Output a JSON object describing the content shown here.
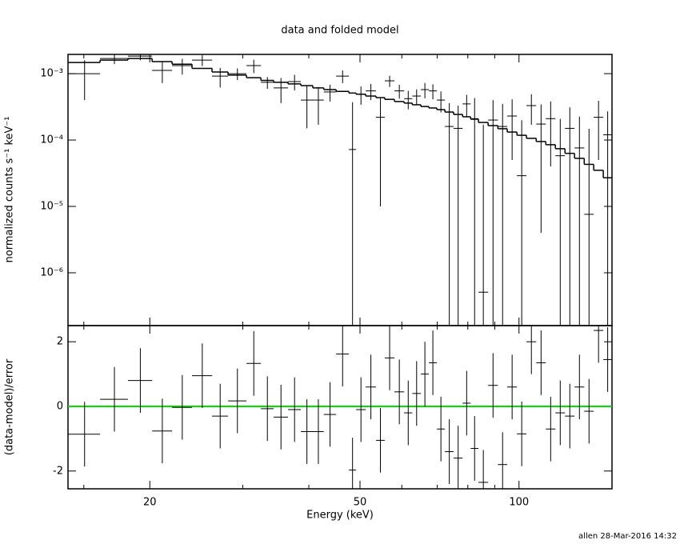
{
  "title": "data and folded model",
  "footer": "allen 28-Mar-2016 14:32",
  "chart_data": [
    {
      "type": "errorbar",
      "ylabel": "normalized counts s⁻¹ keV⁻¹",
      "xlog": true,
      "ylog": true,
      "xlim": [
        14,
        150
      ],
      "ylim": [
        1.6e-07,
        0.00195
      ],
      "xticks": [
        20,
        50,
        100
      ],
      "xticks_minor": [
        15,
        30,
        40,
        60,
        70,
        80,
        90
      ],
      "show_xtick_labels": false,
      "yticks": [
        {
          "value": 1e-06,
          "label": "10⁻⁶"
        },
        {
          "value": 1e-05,
          "label": "10⁻⁵"
        },
        {
          "value": 0.0001,
          "label": "10⁻⁴"
        },
        {
          "value": 0.001,
          "label": "10⁻³"
        }
      ],
      "x": [
        15.05,
        17.14,
        19.19,
        21.12,
        23.04,
        25.14,
        27.18,
        29.3,
        31.47,
        33.39,
        35.43,
        37.59,
        39.67,
        41.7,
        43.88,
        46.35,
        48.4,
        50.21,
        52.43,
        54.65,
        56.9,
        59.35,
        61.7,
        64.0,
        66.35,
        68.7,
        71.15,
        73.8,
        76.7,
        79.6,
        82.4,
        85.6,
        89.3,
        93.1,
        97.05,
        101.2,
        105.55,
        110.1,
        114.8,
        119.7,
        124.8,
        130.15,
        135.7,
        141.45,
        147.2
      ],
      "xerr": [
        1.05,
        1.04,
        1.01,
        0.92,
        1.0,
        1.1,
        0.95,
        1.17,
        0.99,
        0.93,
        1.11,
        1.05,
        1.03,
        1.0,
        1.18,
        1.29,
        0.76,
        1.05,
        1.17,
        1.05,
        1.2,
        1.25,
        1.1,
        1.2,
        1.15,
        1.2,
        1.25,
        1.4,
        1.5,
        1.4,
        1.4,
        1.8,
        1.9,
        1.9,
        2.05,
        2.1,
        2.25,
        2.3,
        2.4,
        2.5,
        2.6,
        2.75,
        2.8,
        2.95,
        2.8
      ],
      "data": {
        "color": "#000000",
        "values": [
          0.001,
          0.00169,
          0.00184,
          0.00112,
          0.00132,
          0.0016,
          0.00092,
          0.001,
          0.00132,
          0.00074,
          0.00061,
          0.00076,
          0.0004,
          0.0004,
          0.00053,
          0.00092,
          7.2e-05,
          0.00049,
          0.00055,
          0.00022,
          0.00078,
          0.00055,
          0.00042,
          0.00046,
          0.000575,
          0.00055,
          0.0004,
          0.00016,
          0.00015,
          0.00035,
          0.00021,
          5.1e-07,
          0.0002,
          0.00016,
          0.00023,
          2.9e-05,
          0.00033,
          0.000174,
          0.00021,
          5.8e-05,
          0.00015,
          7.6e-05,
          7.6e-06,
          0.00022,
          0.00012
        ],
        "errors": [
          0.0006,
          0.0003,
          0.00025,
          0.0004,
          0.00035,
          0.0003,
          0.0003,
          0.0002,
          0.0003,
          0.00015,
          0.00025,
          0.0002,
          0.00025,
          0.00023,
          0.00015,
          0.0002,
          0.0003,
          0.00015,
          0.00015,
          0.00021,
          0.00015,
          0.00013,
          0.00013,
          0.00012,
          0.00015,
          0.00014,
          0.00014,
          0.0002,
          0.00018,
          0.00013,
          0.00022,
          0.00017,
          0.0002,
          0.00019,
          0.00018,
          0.00017,
          0.00016,
          0.00017,
          0.00017,
          0.00015,
          0.00016,
          0.00015,
          0.00014,
          0.00017,
          0.00015
        ]
      },
      "model": {
        "color": "#000000",
        "values": [
          0.00147,
          0.0016,
          0.00169,
          0.00152,
          0.00139,
          0.0012,
          0.00106,
          0.00095,
          0.00087,
          0.00079,
          0.00074,
          0.0007,
          0.00066,
          0.00061,
          0.000575,
          0.00054,
          0.00051,
          0.00049,
          0.00046,
          0.000435,
          0.00041,
          0.00038,
          0.00036,
          0.00034,
          0.00032,
          0.000304,
          0.000287,
          0.000264,
          0.000243,
          0.000224,
          0.000206,
          0.000184,
          0.000165,
          0.000148,
          0.000132,
          0.000118,
          0.000106,
          9.5e-05,
          8.5e-05,
          7.4e-05,
          6.3e-05,
          5.3e-05,
          4.3e-05,
          3.5e-05,
          2.7e-05
        ]
      }
    },
    {
      "type": "errorbar",
      "ylabel": "(data-model)/error",
      "xlabel": "Energy (keV)",
      "xlog": true,
      "ylog": false,
      "xlim": [
        14,
        150
      ],
      "ylim": [
        -2.55,
        2.5
      ],
      "xticks": [
        20,
        50,
        100
      ],
      "xticks_minor": [
        15,
        30,
        40,
        60,
        70,
        80,
        90
      ],
      "show_xtick_labels": true,
      "yticks": [
        -2,
        0,
        2
      ],
      "x": [
        15.05,
        17.14,
        19.19,
        21.12,
        23.04,
        25.14,
        27.18,
        29.3,
        31.47,
        33.39,
        35.43,
        37.59,
        39.67,
        41.7,
        43.88,
        46.35,
        48.4,
        50.21,
        52.43,
        54.65,
        56.9,
        59.35,
        61.7,
        64.0,
        66.35,
        68.7,
        71.15,
        73.8,
        76.7,
        79.6,
        82.4,
        85.6,
        89.3,
        93.1,
        97.05,
        101.2,
        105.55,
        110.1,
        114.8,
        119.7,
        124.8,
        130.15,
        135.7,
        141.45,
        147.2
      ],
      "xerr": [
        1.05,
        1.04,
        1.01,
        0.92,
        1.0,
        1.1,
        0.95,
        1.17,
        0.99,
        0.93,
        1.11,
        1.05,
        1.03,
        1.0,
        1.18,
        1.29,
        0.76,
        1.05,
        1.17,
        1.05,
        1.2,
        1.25,
        1.1,
        1.2,
        1.15,
        1.2,
        1.25,
        1.4,
        1.5,
        1.4,
        1.4,
        1.8,
        1.9,
        1.9,
        2.05,
        2.1,
        2.25,
        2.3,
        2.4,
        2.5,
        2.6,
        2.75,
        2.8,
        2.95,
        2.8
      ],
      "data": {
        "color": "#000000",
        "values": [
          -0.86,
          0.22,
          0.8,
          -0.76,
          -0.03,
          0.95,
          -0.3,
          0.17,
          1.33,
          -0.07,
          -0.33,
          -0.1,
          -0.78,
          -0.78,
          -0.25,
          1.62,
          -1.97,
          -0.1,
          0.6,
          -1.05,
          1.5,
          0.45,
          -0.2,
          0.4,
          1.0,
          1.35,
          -0.7,
          -1.4,
          -1.6,
          0.1,
          -1.3,
          -2.35,
          0.65,
          -1.8,
          0.6,
          -0.85,
          2.0,
          1.35,
          -0.7,
          -0.2,
          -0.3,
          0.6,
          -0.15,
          2.35,
          1.45
        ],
        "errors": [
          1,
          1,
          1,
          1,
          1,
          1,
          1,
          1,
          1,
          1,
          1,
          1,
          1,
          1,
          1,
          1,
          1,
          1,
          1,
          1,
          1,
          1,
          1,
          1,
          1,
          1,
          1,
          1,
          1,
          1,
          1,
          1,
          1,
          1,
          1,
          1,
          1,
          1,
          1,
          1,
          1,
          1,
          1,
          1,
          1
        ]
      },
      "hline": {
        "value": 0,
        "color": "#00e000"
      }
    }
  ]
}
